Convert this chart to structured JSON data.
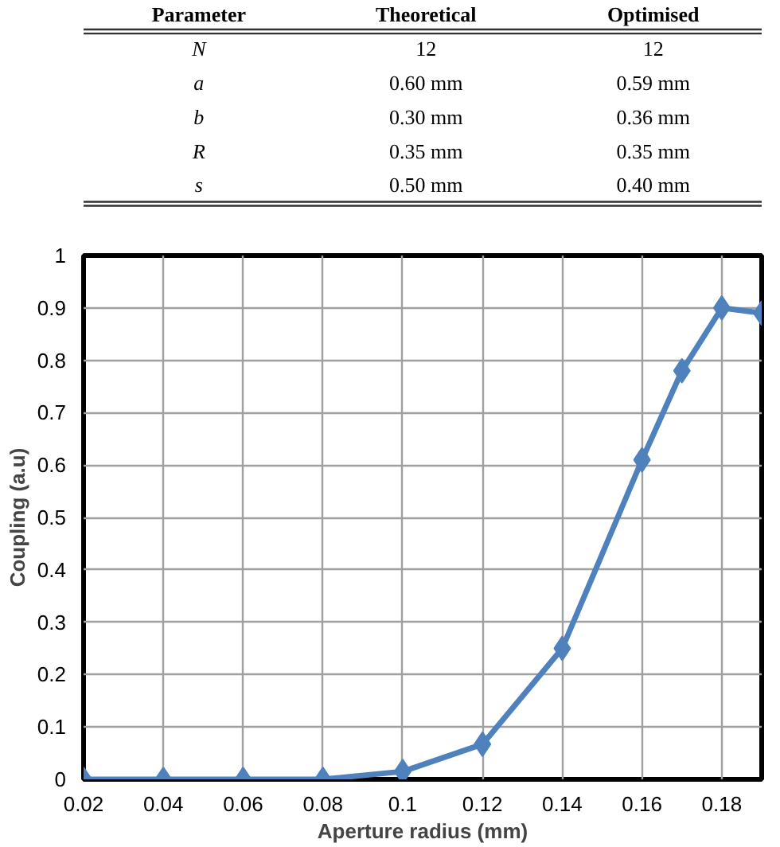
{
  "chart_data": [
    {
      "type": "other",
      "annotations": [
        "Parameter",
        "Theoretical",
        "Optimised",
        "N",
        "12",
        "12",
        "a",
        "0.60 mm",
        "0.59 mm",
        "b",
        "0.30 mm",
        "0.36 mm",
        "R",
        "0.35 mm",
        "0.35 mm",
        "s",
        "0.50 mm",
        "0.40 mm"
      ]
    },
    {
      "type": "line",
      "xlabel": "Aperture radius (mm)",
      "ylabel": "Coupling (a.u)",
      "x": [
        0.02,
        0.04,
        0.06,
        0.08,
        0.1,
        0.12,
        0.14,
        0.16,
        0.17,
        0.18,
        0.19
      ],
      "series": [
        {
          "color": "#4f81bd",
          "values": [
            0,
            0,
            0,
            0,
            0.015,
            0.067,
            0.25,
            0.61,
            0.78,
            0.9,
            0.89
          ]
        }
      ],
      "xlim": [
        0.02,
        0.19
      ],
      "xticks": [
        0.02,
        0.04,
        0.06,
        0.08,
        0.1,
        0.12,
        0.14,
        0.16,
        0.18
      ],
      "ylim": [
        0,
        1
      ],
      "yticks": [
        0,
        0.1,
        0.2,
        0.3,
        0.4,
        0.5,
        0.6,
        0.7,
        0.8,
        0.9,
        1
      ],
      "grid": true,
      "marker": "diamond",
      "line_style": "solid"
    }
  ]
}
